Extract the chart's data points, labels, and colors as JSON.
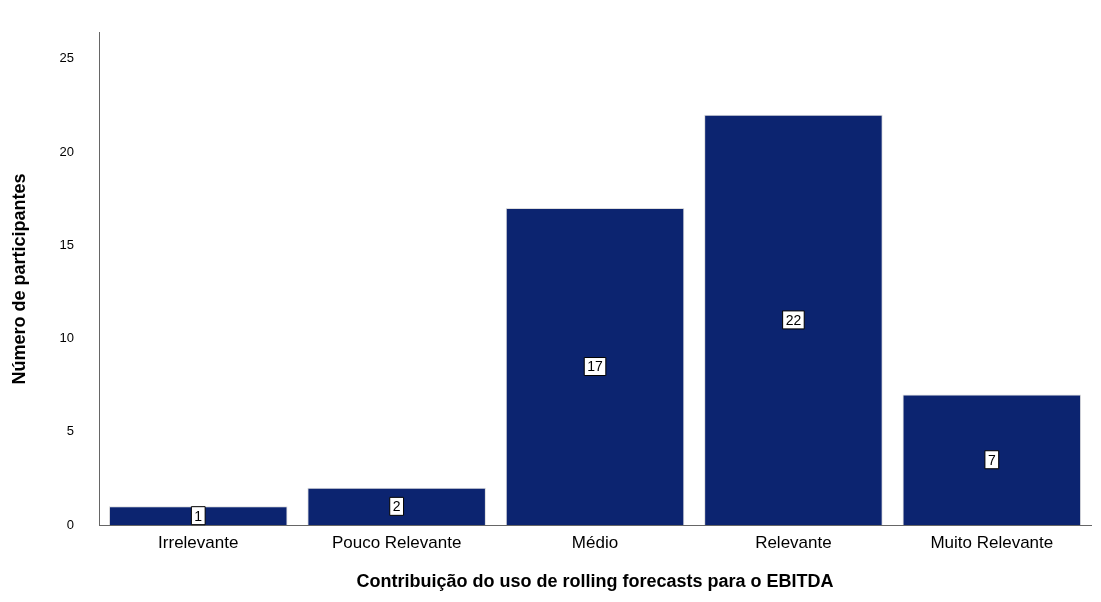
{
  "chart_data": {
    "type": "bar",
    "xlabel": "Contribuição do uso de rolling forecasts para o EBITDA",
    "ylabel": "Número de participantes",
    "categories": [
      "Irrelevante",
      "Pouco Relevante",
      "Médio",
      "Relevante",
      "Muito Relevante"
    ],
    "values": [
      1,
      2,
      17,
      22,
      7
    ],
    "color": "#0c2470",
    "ylim": [
      0,
      26.4
    ],
    "yticks": [
      0,
      5,
      10,
      15,
      20,
      25
    ],
    "grid": false,
    "data_labels": true
  }
}
